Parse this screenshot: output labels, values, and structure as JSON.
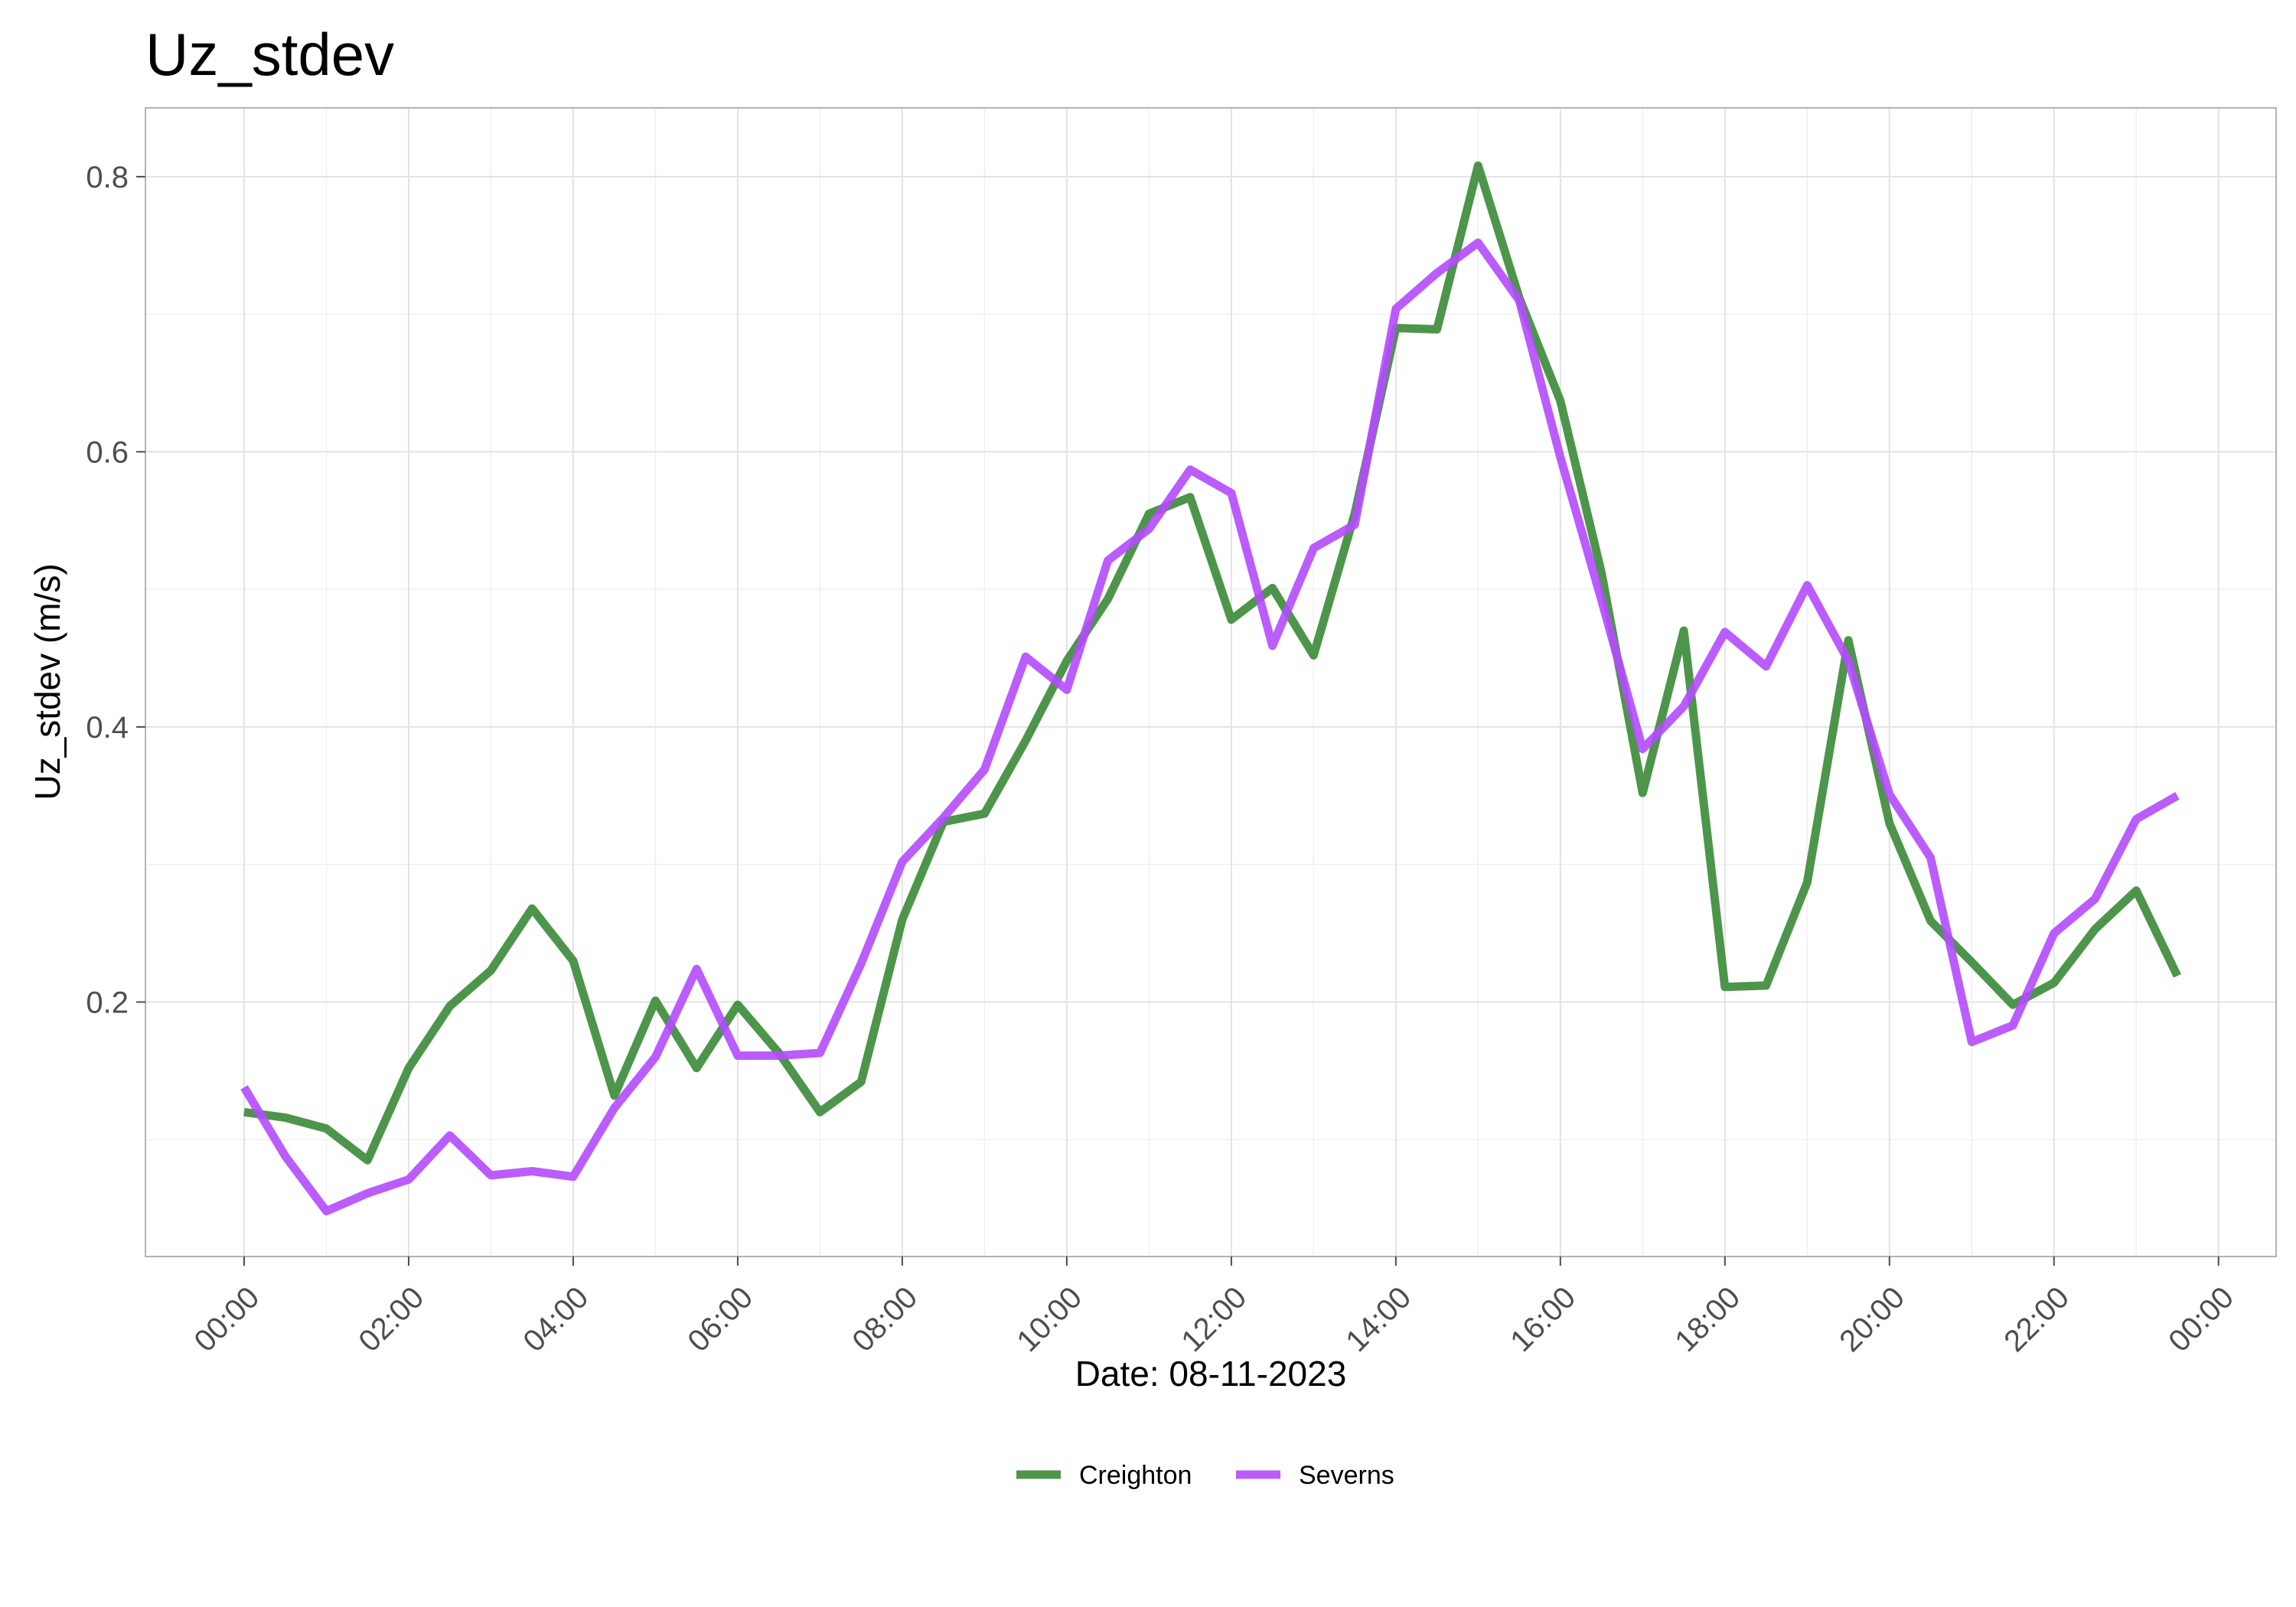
{
  "chart_data": {
    "type": "line",
    "title": "Uz_stdev",
    "xlabel": "Date: 08-11-2023",
    "ylabel": "Uz_stdev (m/s)",
    "x_unit": "hours",
    "xlim": [
      -1.2,
      24.7
    ],
    "ylim": [
      0.015,
      0.85
    ],
    "x_ticks": [
      0,
      2,
      4,
      6,
      8,
      10,
      12,
      14,
      16,
      18,
      20,
      22,
      24
    ],
    "x_tick_labels": [
      "00:00",
      "02:00",
      "04:00",
      "06:00",
      "08:00",
      "10:00",
      "12:00",
      "14:00",
      "16:00",
      "18:00",
      "20:00",
      "22:00",
      "00:00"
    ],
    "y_ticks": [
      0.2,
      0.4,
      0.6,
      0.8
    ],
    "y_tick_labels": [
      "0.2",
      "0.4",
      "0.6",
      "0.8"
    ],
    "grid": true,
    "legend_position": "bottom",
    "x": [
      0,
      0.5,
      1,
      1.5,
      2,
      2.5,
      3,
      3.5,
      4,
      4.5,
      5,
      5.5,
      6,
      6.5,
      7,
      7.5,
      8,
      8.5,
      9,
      9.5,
      10,
      10.5,
      11,
      11.5,
      12,
      12.5,
      13,
      13.5,
      14,
      14.5,
      15,
      15.5,
      16,
      16.5,
      17,
      17.5,
      18,
      18.5,
      19,
      19.5,
      20,
      20.5,
      21,
      21.5,
      22,
      22.5,
      23,
      23.5
    ],
    "series": [
      {
        "name": "Creighton",
        "color": "#3a8a36",
        "values": [
          0.12,
          0.116,
          0.108,
          0.085,
          0.152,
          0.197,
          0.223,
          0.268,
          0.23,
          0.132,
          0.201,
          0.152,
          0.198,
          0.163,
          0.12,
          0.142,
          0.26,
          0.331,
          0.337,
          0.39,
          0.448,
          0.493,
          0.555,
          0.567,
          0.478,
          0.501,
          0.452,
          0.555,
          0.69,
          0.689,
          0.808,
          0.712,
          0.637,
          0.512,
          0.352,
          0.47,
          0.211,
          0.212,
          0.287,
          0.463,
          0.33,
          0.259,
          0.229,
          0.198,
          0.214,
          0.253,
          0.281,
          0.219
        ]
      },
      {
        "name": "Severns",
        "color": "#b44aff",
        "values": [
          0.138,
          0.088,
          0.048,
          0.061,
          0.071,
          0.103,
          0.074,
          0.077,
          0.073,
          0.123,
          0.16,
          0.224,
          0.161,
          0.161,
          0.163,
          0.228,
          0.302,
          0.334,
          0.369,
          0.451,
          0.427,
          0.521,
          0.544,
          0.587,
          0.57,
          0.459,
          0.53,
          0.547,
          0.704,
          0.73,
          0.752,
          0.71,
          0.596,
          0.492,
          0.384,
          0.415,
          0.469,
          0.444,
          0.503,
          0.448,
          0.351,
          0.305,
          0.171,
          0.183,
          0.25,
          0.275,
          0.333,
          0.35
        ]
      }
    ]
  }
}
